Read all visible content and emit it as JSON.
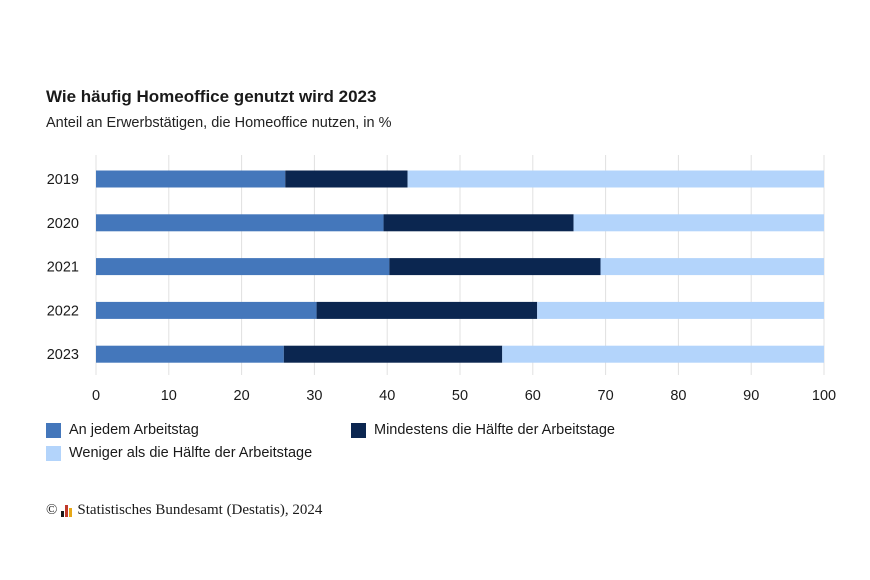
{
  "title": "Wie häufig Homeoffice genutzt wird 2023",
  "subtitle": "Anteil an Erwerbstätigen, die Homeoffice nutzen, in %",
  "source": {
    "copyright_symbol": "©",
    "text": "Statistisches Bundesamt (Destatis), 2024",
    "logo_icon": "destatis-logo-icon"
  },
  "colors": {
    "every_day": "#4477bb",
    "at_least_half": "#0b2650",
    "less_than_half": "#b3d4fb",
    "grid": "#e0e0e0"
  },
  "chart_data": {
    "type": "bar",
    "orientation": "horizontal",
    "stacked": true,
    "categories": [
      "2019",
      "2020",
      "2021",
      "2022",
      "2023"
    ],
    "series": [
      {
        "name": "An jedem Arbeitstag",
        "values": [
          26,
          39.5,
          40.3,
          30.3,
          25.8
        ]
      },
      {
        "name": "Mindestens die Hälfte der Arbeitstage",
        "values": [
          16.8,
          26.1,
          29.0,
          30.3,
          30.0
        ]
      },
      {
        "name": "Weniger als die Hälfte der Arbeitstage",
        "values": [
          57.2,
          34.4,
          30.7,
          39.4,
          44.2
        ]
      }
    ],
    "xlim": [
      0,
      100
    ],
    "xticks": [
      0,
      10,
      20,
      30,
      40,
      50,
      60,
      70,
      80,
      90,
      100
    ],
    "grid": true,
    "legend_position": "bottom"
  }
}
